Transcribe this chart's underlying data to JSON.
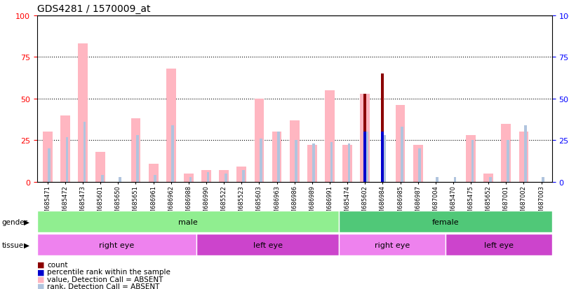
{
  "title": "GDS4281 / 1570009_at",
  "samples": [
    "GSM685471",
    "GSM685472",
    "GSM685473",
    "GSM685601",
    "GSM685650",
    "GSM685651",
    "GSM686961",
    "GSM686962",
    "GSM686988",
    "GSM686990",
    "GSM685522",
    "GSM685523",
    "GSM685603",
    "GSM686963",
    "GSM686986",
    "GSM686989",
    "GSM686991",
    "GSM685474",
    "GSM685602",
    "GSM686984",
    "GSM686985",
    "GSM686987",
    "GSM687004",
    "GSM685470",
    "GSM685475",
    "GSM685652",
    "GSM687001",
    "GSM687002",
    "GSM687003"
  ],
  "value_absent": [
    30,
    40,
    83,
    18,
    0,
    38,
    11,
    68,
    5,
    7,
    7,
    9,
    50,
    30,
    37,
    22,
    55,
    22,
    53,
    0,
    46,
    22,
    0,
    0,
    28,
    5,
    35,
    30,
    0
  ],
  "rank_absent": [
    20,
    27,
    36,
    4,
    3,
    28,
    4,
    34,
    3,
    6,
    5,
    7,
    26,
    30,
    25,
    23,
    24,
    23,
    30,
    28,
    33,
    20,
    3,
    3,
    25,
    3,
    25,
    34,
    3
  ],
  "count": [
    0,
    0,
    0,
    0,
    0,
    0,
    0,
    0,
    0,
    0,
    0,
    0,
    0,
    0,
    0,
    0,
    0,
    0,
    53,
    65,
    0,
    0,
    0,
    0,
    0,
    0,
    0,
    0,
    0
  ],
  "percentile": [
    0,
    0,
    0,
    0,
    0,
    0,
    0,
    0,
    0,
    0,
    0,
    0,
    0,
    0,
    0,
    0,
    0,
    0,
    30,
    30,
    0,
    0,
    0,
    0,
    0,
    0,
    0,
    0,
    0
  ],
  "gender_groups": [
    {
      "label": "male",
      "start": 0,
      "end": 17,
      "color": "#90EE90"
    },
    {
      "label": "female",
      "start": 17,
      "end": 29,
      "color": "#50C878"
    }
  ],
  "tissue_groups": [
    {
      "label": "right eye",
      "start": 0,
      "end": 9,
      "color": "#EE82EE"
    },
    {
      "label": "left eye",
      "start": 9,
      "end": 17,
      "color": "#CC44CC"
    },
    {
      "label": "right eye",
      "start": 17,
      "end": 23,
      "color": "#EE82EE"
    },
    {
      "label": "left eye",
      "start": 23,
      "end": 29,
      "color": "#CC44CC"
    }
  ],
  "ylim": [
    0,
    100
  ],
  "yticks": [
    0,
    25,
    50,
    75,
    100
  ],
  "color_value_absent": "#FFB6C1",
  "color_rank_absent": "#B0C4DE",
  "color_count": "#8B0000",
  "color_percentile": "#0000CD",
  "legend_items": [
    {
      "label": "count",
      "color": "#8B0000"
    },
    {
      "label": "percentile rank within the sample",
      "color": "#0000CD"
    },
    {
      "label": "value, Detection Call = ABSENT",
      "color": "#FFB6C1"
    },
    {
      "label": "rank, Detection Call = ABSENT",
      "color": "#B0C4DE"
    }
  ]
}
